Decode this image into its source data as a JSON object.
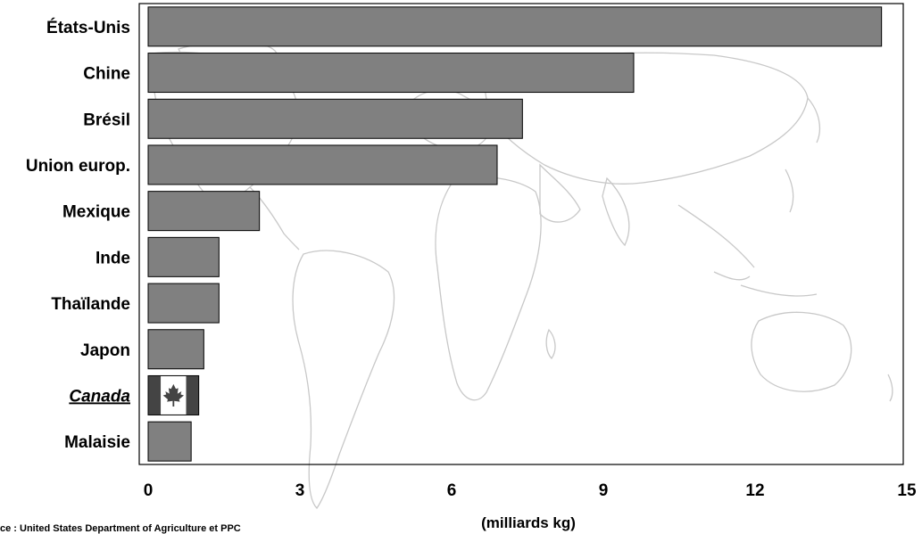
{
  "chart_data": {
    "type": "bar",
    "orientation": "horizontal",
    "categories": [
      "États-Unis",
      "Chine",
      "Brésil",
      "Union europ.",
      "Mexique",
      "Inde",
      "Thaïlande",
      "Japon",
      "Canada",
      "Malaisie"
    ],
    "values": [
      14.5,
      9.6,
      7.4,
      6.9,
      2.2,
      1.4,
      1.4,
      1.1,
      1.0,
      0.85
    ],
    "highlight": {
      "category": "Canada",
      "style": "italic underline",
      "bar_fill": "canadian-flag"
    },
    "xlabel": "(milliards kg)",
    "xticks": [
      0,
      3,
      6,
      9,
      12,
      15
    ],
    "xlim": [
      0,
      15
    ],
    "grid": false,
    "background": "world-map-outline",
    "source": "ce : United States Department of Agriculture et PPC",
    "colors": {
      "bar": "#808080",
      "bar_stroke": "#000000",
      "flag_red": "#444444",
      "flag_white": "#ffffff",
      "map_line": "#c8c8c8"
    }
  }
}
